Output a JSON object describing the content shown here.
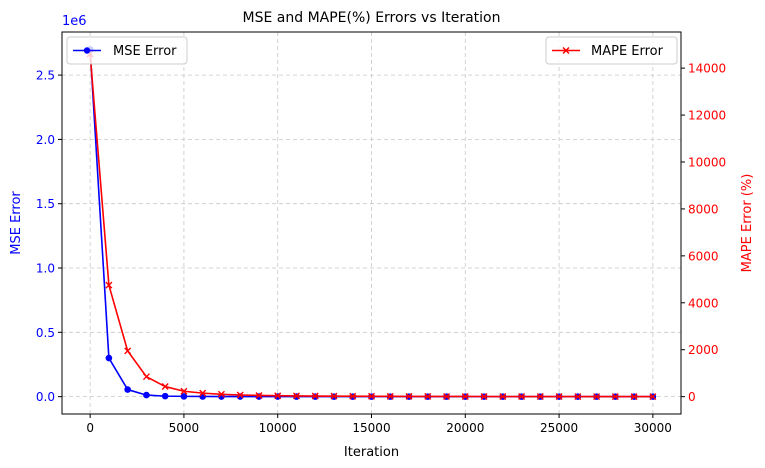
{
  "chart_data": {
    "type": "line",
    "title": "MSE and MAPE(%) Errors vs Iteration",
    "xlabel": "Iteration",
    "xlim": [
      -1500,
      31500
    ],
    "x_ticks": [
      0,
      5000,
      10000,
      15000,
      20000,
      25000,
      30000
    ],
    "x_tick_labels": [
      "0",
      "5000",
      "10000",
      "15000",
      "20000",
      "25000",
      "30000"
    ],
    "grid": true,
    "left_axis": {
      "label": "MSE Error",
      "color": "#0000ff",
      "ylim": [
        -135000,
        2835000
      ],
      "ticks": [
        0,
        500000,
        1000000,
        1500000,
        2000000,
        2500000
      ],
      "tick_labels": [
        "0.0",
        "0.5",
        "1.0",
        "1.5",
        "2.0",
        "2.5"
      ],
      "offset_label": "1e6"
    },
    "right_axis": {
      "label": "MAPE Error (%)",
      "color": "#ff0000",
      "ylim": [
        -740,
        15540
      ],
      "ticks": [
        0,
        2000,
        4000,
        6000,
        8000,
        10000,
        12000,
        14000
      ],
      "tick_labels": [
        "0",
        "2000",
        "4000",
        "6000",
        "8000",
        "10000",
        "12000",
        "14000"
      ]
    },
    "x": [
      0,
      1000,
      2000,
      3000,
      4000,
      5000,
      6000,
      7000,
      8000,
      9000,
      10000,
      11000,
      12000,
      13000,
      14000,
      15000,
      16000,
      17000,
      18000,
      19000,
      20000,
      21000,
      22000,
      23000,
      24000,
      25000,
      26000,
      27000,
      28000,
      29000,
      30000
    ],
    "series": [
      {
        "name": "MSE Error",
        "axis": "left",
        "color": "#0000ff",
        "marker": "circle",
        "legend_loc": "upper left",
        "values": [
          2700000,
          300000,
          55000,
          12000,
          4000,
          2000,
          1200,
          800,
          500,
          400,
          300,
          200,
          150,
          120,
          100,
          90,
          80,
          70,
          60,
          55,
          50,
          45,
          40,
          35,
          30,
          28,
          25,
          22,
          20,
          18,
          15
        ]
      },
      {
        "name": "MAPE Error",
        "axis": "right",
        "color": "#ff0000",
        "marker": "x",
        "legend_loc": "upper right",
        "values": [
          14600,
          4750,
          1950,
          850,
          430,
          230,
          150,
          100,
          70,
          50,
          40,
          30,
          25,
          20,
          18,
          15,
          12,
          10,
          9,
          8,
          7,
          6,
          5,
          5,
          4,
          4,
          3,
          3,
          3,
          2,
          2
        ]
      }
    ]
  }
}
